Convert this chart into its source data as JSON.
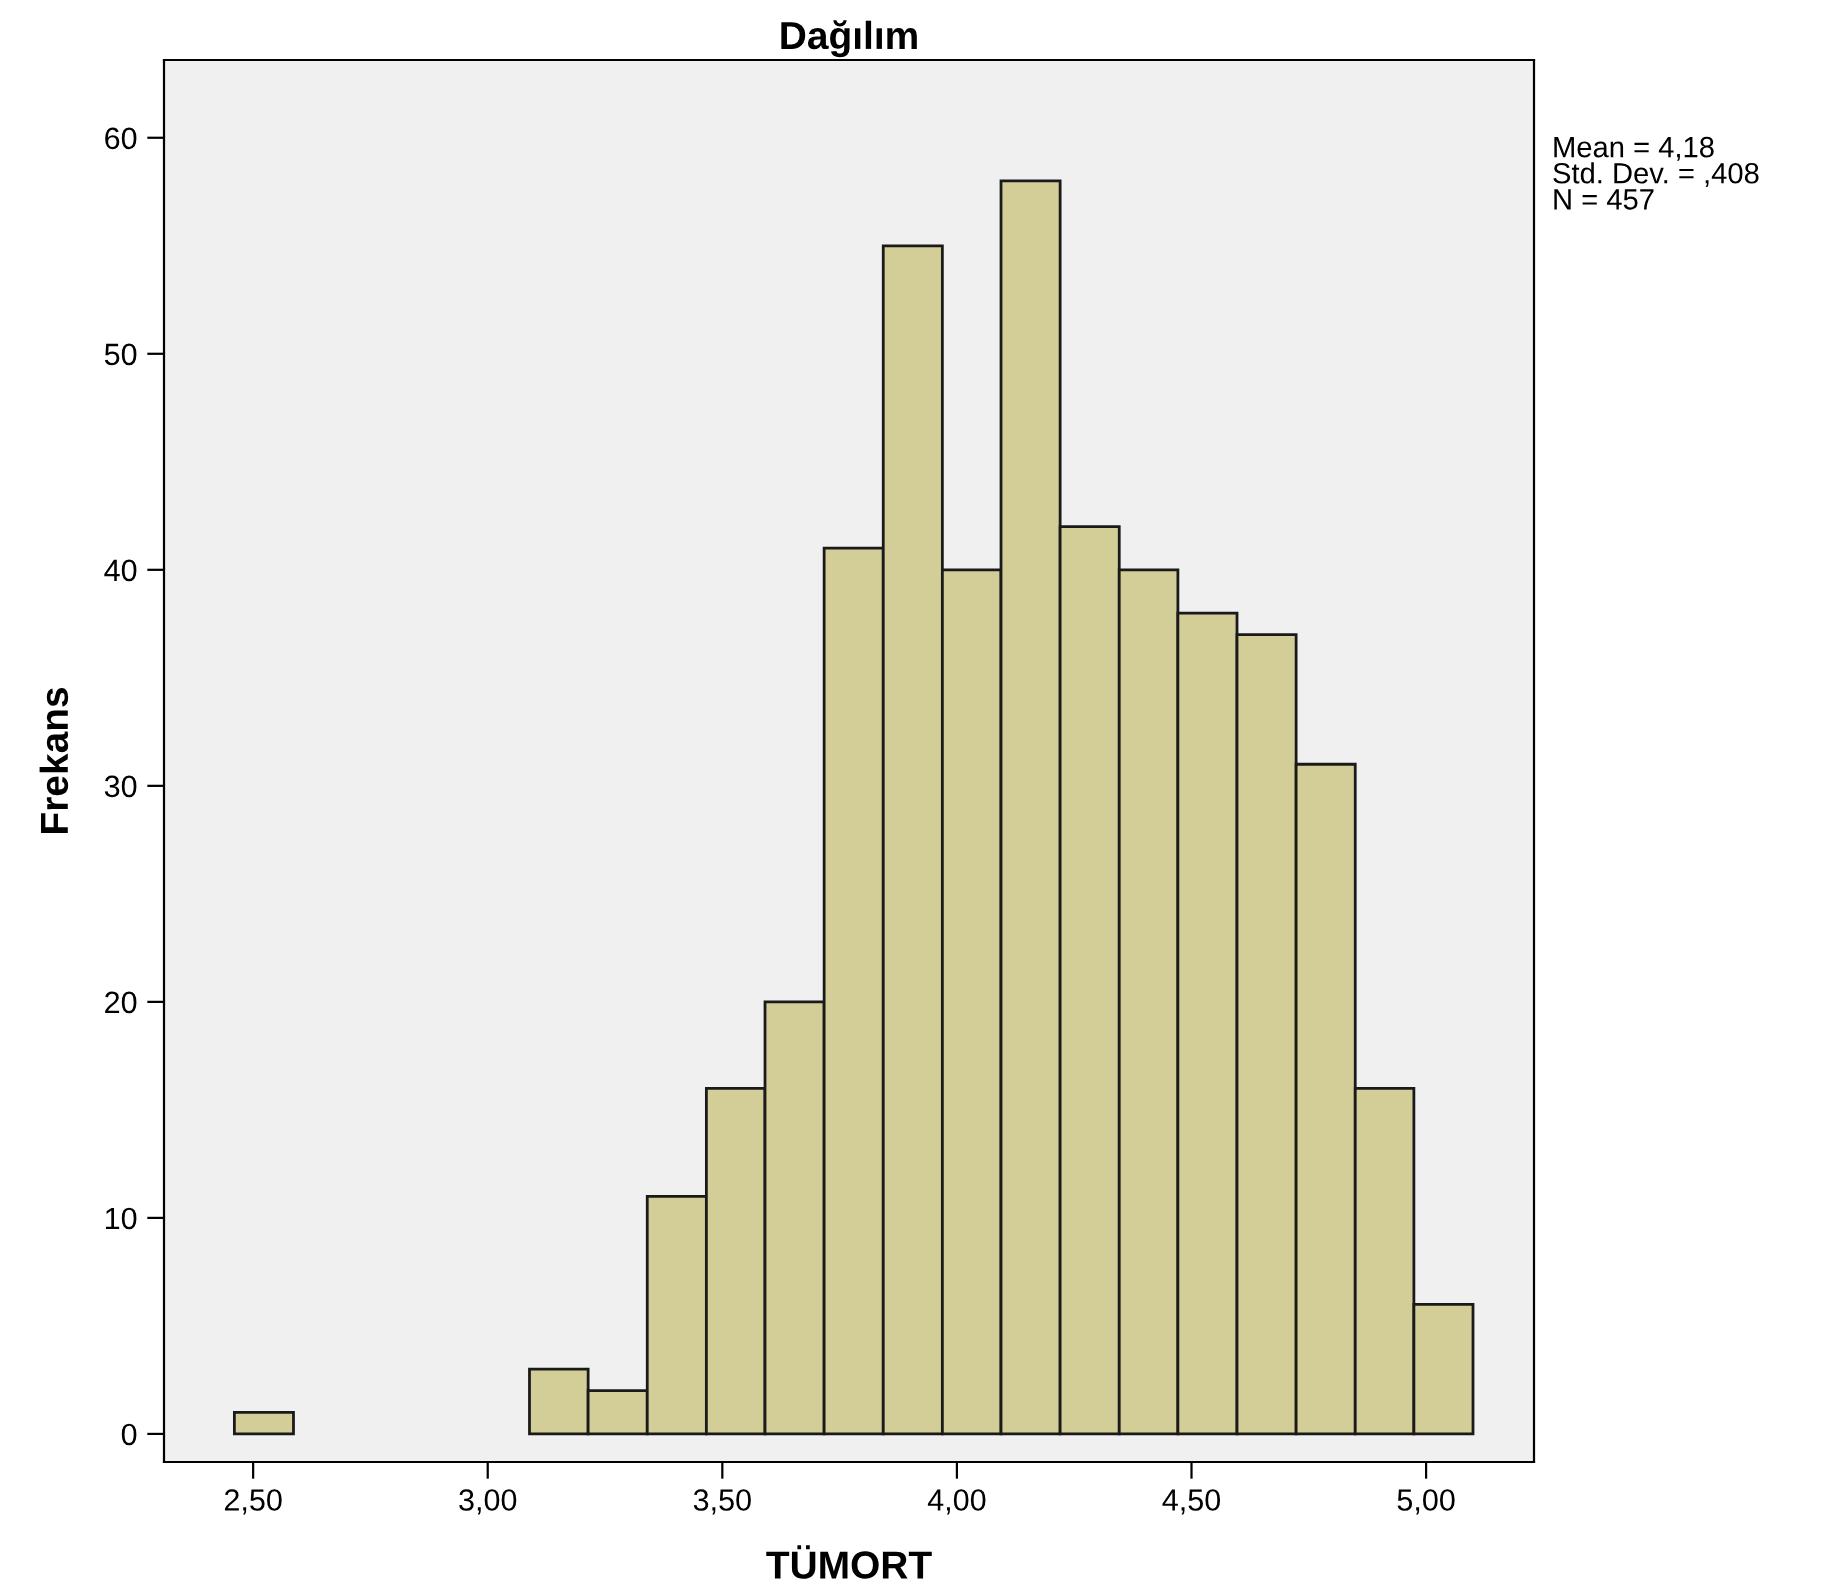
{
  "chart_data": {
    "type": "histogram",
    "title": "Dağılım",
    "xlabel": "TÜMORT",
    "ylabel": "Frekans",
    "bins": [
      2.46,
      2.586,
      2.711,
      2.837,
      2.963,
      3.089,
      3.214,
      3.34,
      3.466,
      3.591,
      3.717,
      3.843,
      3.969,
      4.094,
      4.22,
      4.346,
      4.471,
      4.597,
      4.723,
      4.849,
      4.974,
      5.1
    ],
    "values": [
      1,
      0,
      0,
      0,
      0,
      3,
      2,
      11,
      16,
      20,
      41,
      55,
      40,
      58,
      42,
      40,
      38,
      37,
      31,
      16,
      6
    ],
    "color": "#d3ce97",
    "xlim": [
      2.31,
      5.23
    ],
    "ylim": [
      -1.3,
      63.6
    ],
    "xticks": [
      {
        "value": 2.5,
        "label": "2,50"
      },
      {
        "value": 3.0,
        "label": "3,00"
      },
      {
        "value": 3.5,
        "label": "3,50"
      },
      {
        "value": 4.0,
        "label": "4,00"
      },
      {
        "value": 4.5,
        "label": "4,50"
      },
      {
        "value": 5.0,
        "label": "5,00"
      }
    ],
    "yticks": [
      0,
      10,
      20,
      30,
      40,
      50,
      60
    ],
    "grid": false,
    "legend": false,
    "annotations": [
      "Mean = 4,18\nStd. Dev. = ,408\nN = 457"
    ]
  }
}
